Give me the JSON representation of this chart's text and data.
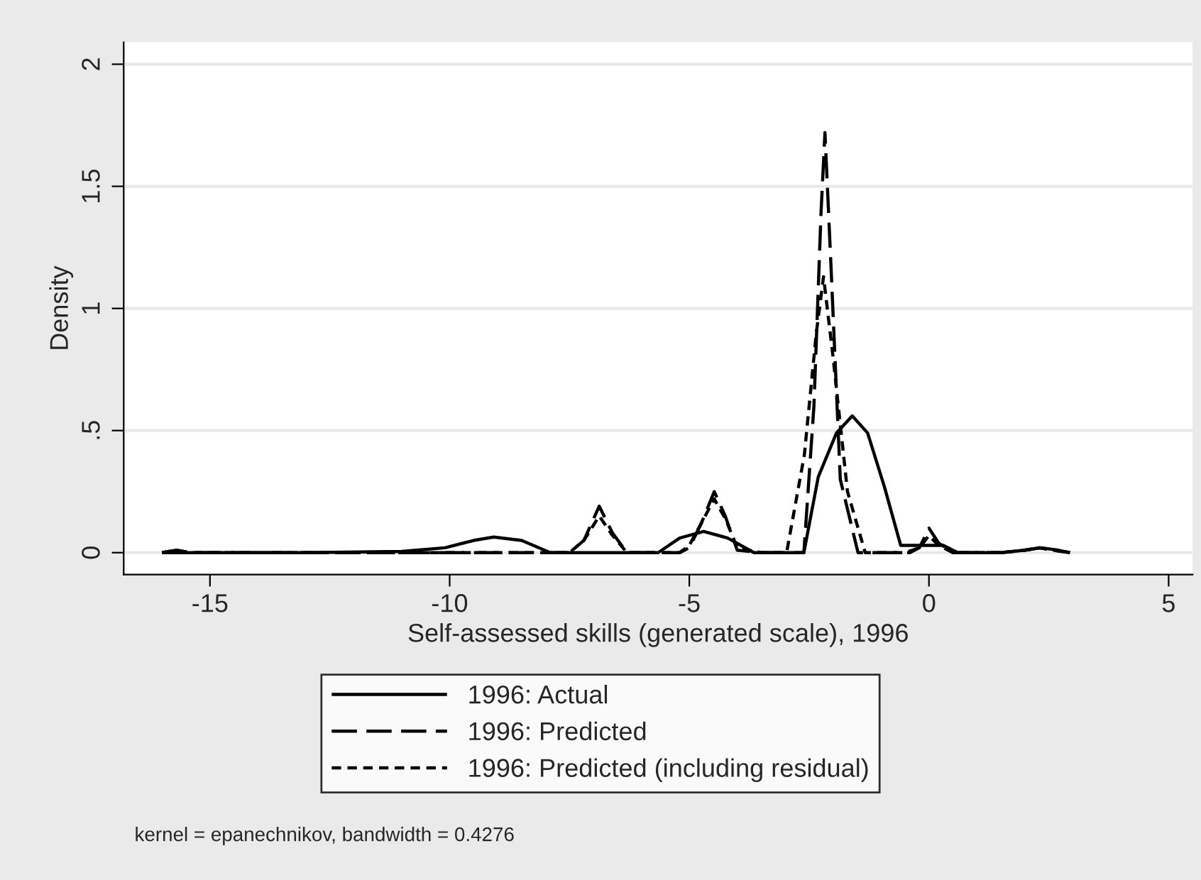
{
  "chart_data": {
    "type": "line",
    "xlabel": "Self-assessed skills (generated scale), 1996",
    "ylabel": "Density",
    "xlim": [
      -16.8,
      5.5
    ],
    "xticks": [
      -15,
      -10,
      -5,
      0,
      5
    ],
    "ylim": [
      -0.09,
      2.09
    ],
    "yticks": [
      {
        "value": 0,
        "label": "0"
      },
      {
        "value": 0.5,
        "label": ".5"
      },
      {
        "value": 1,
        "label": "1"
      },
      {
        "value": 1.5,
        "label": "1.5"
      },
      {
        "value": 2,
        "label": "2"
      }
    ],
    "grid": "y",
    "legend": "bottom",
    "marker": "none",
    "annotations": [
      "kernel = epanechnikov, bandwidth = 0.4276"
    ],
    "series": [
      {
        "name": "1996: Actual",
        "color": "#000000",
        "line_style": "solid",
        "x": [
          -16,
          -15,
          -13,
          -11,
          -10.1,
          -9.5,
          -9.08,
          -8.5,
          -7.9,
          -7,
          -5.65,
          -5.2,
          -4.7,
          -4.2,
          -3.65,
          -3,
          -2.61,
          -2.31,
          -1.93,
          -1.6,
          -1.28,
          -0.93,
          -0.59,
          -0.3,
          0.3,
          0.6,
          1.5,
          2.0,
          2.34,
          2.7,
          2.94
        ],
        "values": [
          0,
          0,
          0,
          0.005,
          0.02,
          0.05,
          0.064,
          0.05,
          0,
          0,
          0,
          0.06,
          0.087,
          0.06,
          0,
          0,
          0,
          0.31,
          0.49,
          0.56,
          0.49,
          0.27,
          0.03,
          0.03,
          0.03,
          0,
          0,
          0.01,
          0.02,
          0.01,
          0
        ]
      },
      {
        "name": "1996: Predicted",
        "color": "#000000",
        "line_style": "dashed",
        "x": [
          -16,
          -15.7,
          -15.4,
          -14,
          -12,
          -10,
          -8,
          -7.5,
          -7.2,
          -6.88,
          -6.6,
          -6.3,
          -6,
          -5.2,
          -5.0,
          -4.75,
          -4.48,
          -4.25,
          -4.0,
          -3.5,
          -2.61,
          -2.4,
          -2.25,
          -2.17,
          -2.05,
          -1.85,
          -1.48,
          -1,
          -0.4,
          -0.2,
          0,
          0.2,
          0.5,
          1.5,
          2.0,
          2.3,
          2.6,
          2.94
        ],
        "values": [
          0,
          0.01,
          0,
          0,
          0,
          0,
          0,
          0,
          0.05,
          0.19,
          0.08,
          0,
          0,
          0,
          0.02,
          0.12,
          0.25,
          0.15,
          0.01,
          0,
          0,
          0.6,
          1.4,
          1.72,
          1.2,
          0.3,
          0,
          0,
          0,
          0.02,
          0.1,
          0.04,
          0,
          0,
          0.01,
          0.02,
          0.01,
          0
        ]
      },
      {
        "name": "1996: Predicted (including residual)",
        "color": "#000000",
        "line_style": "dotted",
        "x": [
          -16,
          -15.7,
          -15.4,
          -14,
          -12,
          -10,
          -8,
          -7.5,
          -7.2,
          -6.88,
          -6.6,
          -6.3,
          -6,
          -5.2,
          -5.0,
          -4.75,
          -4.48,
          -4.25,
          -4.0,
          -3.5,
          -2.97,
          -2.6,
          -2.35,
          -2.2,
          -2.0,
          -1.7,
          -1.33,
          -1,
          -0.5,
          -0.2,
          0,
          0.2,
          0.5,
          1.5,
          2.0,
          2.3,
          2.6,
          2.94
        ],
        "values": [
          0,
          0.01,
          0,
          0,
          0,
          0,
          0,
          0,
          0.05,
          0.15,
          0.07,
          0,
          0,
          0,
          0.03,
          0.12,
          0.22,
          0.14,
          0.02,
          0,
          0,
          0.4,
          0.9,
          1.13,
          0.8,
          0.25,
          0,
          0,
          0,
          0.02,
          0.07,
          0.03,
          0,
          0,
          0.01,
          0.02,
          0.01,
          0
        ]
      }
    ]
  }
}
